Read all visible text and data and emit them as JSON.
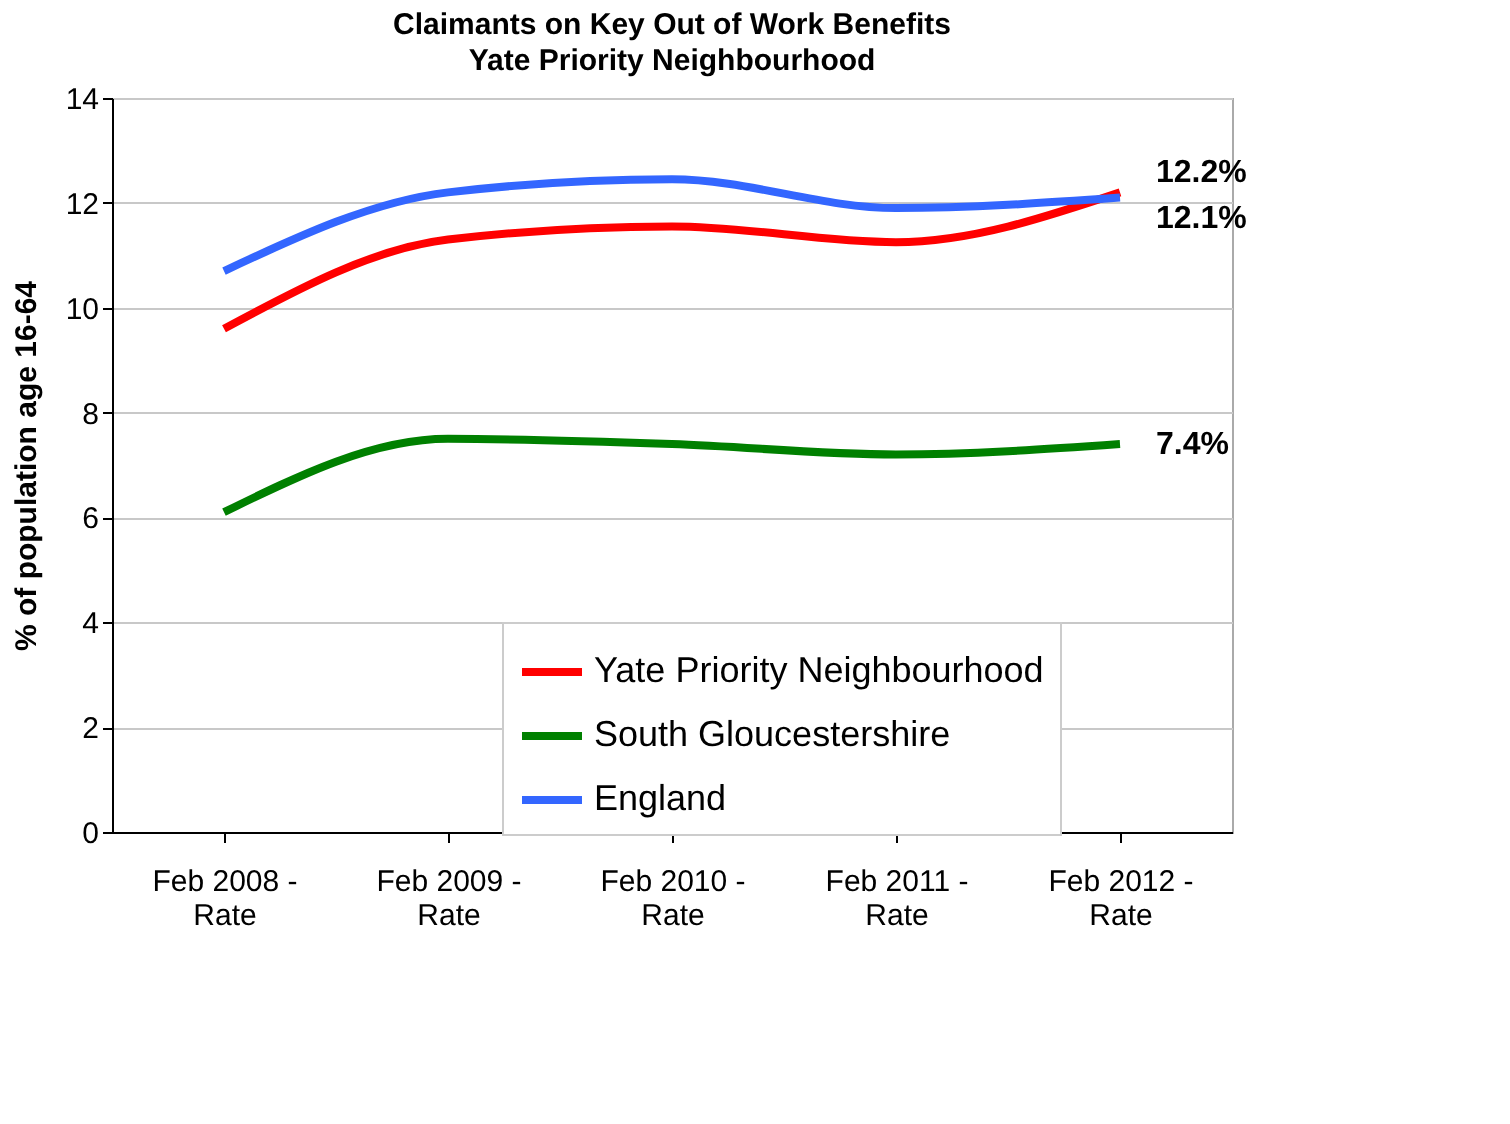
{
  "chart_data": {
    "type": "line",
    "title": "Claimants on Key Out of Work Benefits",
    "subtitle": "Yate Priority Neighbourhood",
    "ylabel": "% of population age 16-64",
    "categories": [
      "Feb 2008 - Rate",
      "Feb 2009 - Rate",
      "Feb 2010 - Rate",
      "Feb 2011 - Rate",
      "Feb 2012 - Rate"
    ],
    "series": [
      {
        "name": "Yate Priority Neighbourhood",
        "color": "#ff0000",
        "values": [
          9.6,
          11.3,
          11.55,
          11.25,
          12.2
        ],
        "value_labels": [
          null,
          null,
          null,
          null,
          "12.2%"
        ]
      },
      {
        "name": "South Gloucestershire",
        "color": "#008000",
        "values": [
          6.1,
          7.5,
          7.4,
          7.2,
          7.4
        ],
        "value_labels": [
          null,
          null,
          null,
          null,
          "7.4%"
        ]
      },
      {
        "name": "England",
        "color": "#3366ff",
        "values": [
          10.7,
          12.2,
          12.45,
          11.9,
          12.1
        ],
        "value_labels": [
          null,
          null,
          null,
          null,
          "12.1%"
        ]
      }
    ],
    "ylim": [
      0,
      14
    ],
    "yticks": [
      0,
      2,
      4,
      6,
      8,
      10,
      12,
      14
    ],
    "grid": "y",
    "legend": "bottom right",
    "line_style": "solid",
    "marker": "none"
  }
}
